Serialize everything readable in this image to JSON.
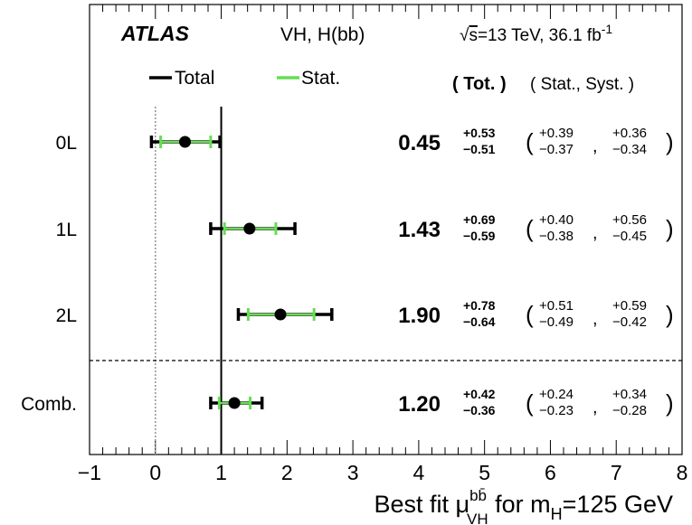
{
  "chart_data": {
    "type": "scatter",
    "experiment": "ATLAS",
    "process": "VH, H(bb)",
    "energy": {
      "sqrt": "s",
      "text": "=13 TeV, 36.1 fb",
      "sup": "-1"
    },
    "legend": [
      {
        "label": "Total",
        "color": "#000000"
      },
      {
        "label": "Stat.",
        "color": "#66dd55"
      }
    ],
    "column_headers": {
      "total": "( Tot. )",
      "stat_syst": "( Stat., Syst. )"
    },
    "x_axis": {
      "range": [
        -1,
        8
      ],
      "ticks": [
        "−1",
        "0",
        "1",
        "2",
        "3",
        "4",
        "5",
        "6",
        "7",
        "8"
      ],
      "label_main": "Best fit μ",
      "label_sup": "bb̄",
      "label_sub": "VH",
      "label_rest": " for m",
      "label_rest_sub": "H",
      "label_tail": "=125 GeV"
    },
    "reference_lines": {
      "sm": 1,
      "zero": 0
    },
    "separator_after": 2,
    "categories": [
      {
        "name": "0L",
        "mu": 0.45,
        "central": "0.45",
        "tot_up": "+0.53",
        "tot_dn": "−0.51",
        "stat_up": "+0.39",
        "stat_dn": "−0.37",
        "syst_up": "+0.36",
        "syst_dn": "−0.34"
      },
      {
        "name": "1L",
        "mu": 1.43,
        "central": "1.43",
        "tot_up": "+0.69",
        "tot_dn": "−0.59",
        "stat_up": "+0.40",
        "stat_dn": "−0.38",
        "syst_up": "+0.56",
        "syst_dn": "−0.45"
      },
      {
        "name": "2L",
        "mu": 1.9,
        "central": "1.90",
        "tot_up": "+0.78",
        "tot_dn": "−0.64",
        "stat_up": "+0.51",
        "stat_dn": "−0.49",
        "syst_up": "+0.59",
        "syst_dn": "−0.42"
      },
      {
        "name": "Comb.",
        "mu": 1.2,
        "central": "1.20",
        "tot_up": "+0.42",
        "tot_dn": "−0.36",
        "stat_up": "+0.24",
        "stat_dn": "−0.23",
        "syst_up": "+0.34",
        "syst_dn": "−0.28"
      }
    ]
  }
}
